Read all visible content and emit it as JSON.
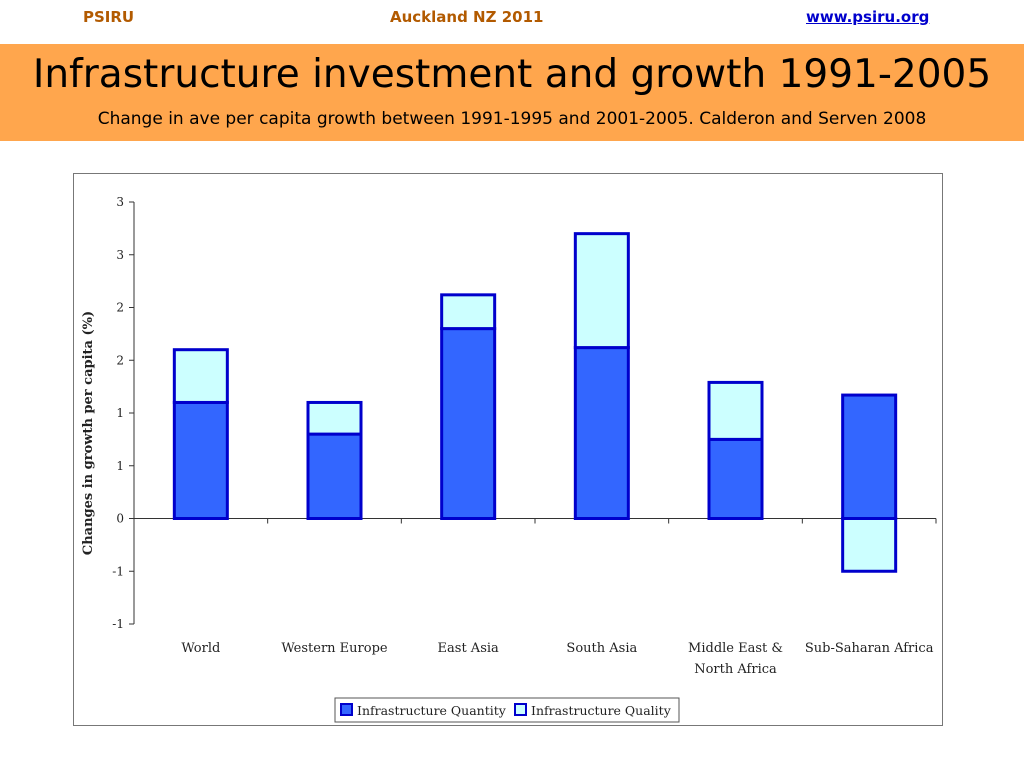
{
  "header": {
    "org": "PSIRU",
    "event": "Auckland NZ 2011",
    "website": "www.psiru.org"
  },
  "slide": {
    "title": "Infrastructure investment and growth 1991-2005",
    "subtitle": "Change in ave per capita growth between 1991-1995 and 2001-2005. Calderon and Serven 2008"
  },
  "colors": {
    "quantity_fill": "#3366ff",
    "quality_fill": "#ccffff",
    "bar_stroke": "#0000cc",
    "banner": "#ffa64d"
  },
  "chart_data": {
    "type": "bar",
    "stacked": true,
    "categories": [
      "World",
      "Western Europe",
      "East Asia",
      "South Asia",
      "Middle East & North Africa",
      "Sub-Saharan Africa"
    ],
    "category_label_lines": [
      [
        "World"
      ],
      [
        "Western Europe"
      ],
      [
        "East Asia"
      ],
      [
        "South Asia"
      ],
      [
        "Middle East &",
        "North Africa"
      ],
      [
        "Sub-Saharan Africa"
      ]
    ],
    "series": [
      {
        "name": "Infrastructure Quantity",
        "values": [
          1.1,
          0.8,
          1.8,
          1.62,
          0.75,
          1.17
        ]
      },
      {
        "name": "Infrastructure Quality",
        "values": [
          0.5,
          0.3,
          0.32,
          1.08,
          0.54,
          -0.5
        ]
      }
    ],
    "ylabel": "Changes in growth per capita (%)",
    "ytick_values": [
      -1,
      -0.5,
      0,
      0.5,
      1,
      1.5,
      2,
      2.5,
      3
    ],
    "ytick_labels": [
      "-1",
      "-1",
      "0",
      "1",
      "1",
      "2",
      "2",
      "3",
      "3"
    ],
    "ylim": [
      -1,
      3
    ],
    "legend_position": "bottom-center",
    "grid": false
  }
}
